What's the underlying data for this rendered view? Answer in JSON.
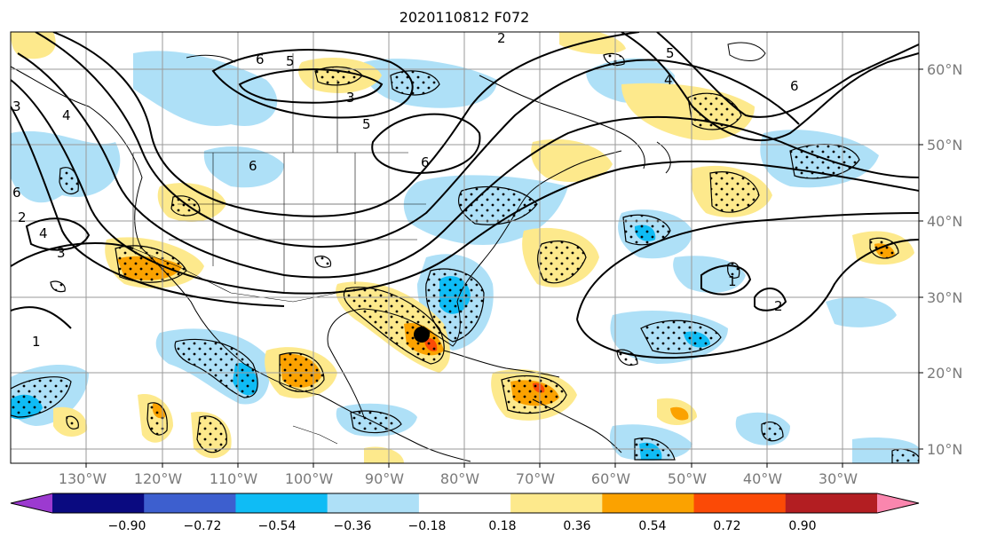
{
  "title": "2020110812 F072",
  "lon_labels": [
    "130°W",
    "120°W",
    "110°W",
    "100°W",
    "90°W",
    "80°W",
    "70°W",
    "60°W",
    "50°W",
    "40°W",
    "30°W"
  ],
  "lat_labels": [
    "60°N",
    "50°N",
    "40°N",
    "30°N",
    "20°N",
    "10°N"
  ],
  "colorbar": {
    "ticks": [
      "−0.90",
      "−0.72",
      "−0.54",
      "−0.36",
      "−0.18",
      "0.18",
      "0.36",
      "0.54",
      "0.72",
      "0.90"
    ],
    "colors": [
      "#9c3ad0",
      "#0a0a80",
      "#3d5fcf",
      "#0fbcf5",
      "#aee0f7",
      "#ffffff",
      "#fde98c",
      "#fba200",
      "#fb4a06",
      "#b31e22",
      "#fa86ae"
    ]
  },
  "contour_labels": [
    "6",
    "5",
    "3",
    "5",
    "6",
    "6",
    "4",
    "6",
    "2",
    "5",
    "4",
    "6",
    "1",
    "3",
    "4",
    "3",
    "2",
    "2",
    "1"
  ],
  "marker": {
    "name": "storm-center-marker",
    "color": "#000000"
  }
}
